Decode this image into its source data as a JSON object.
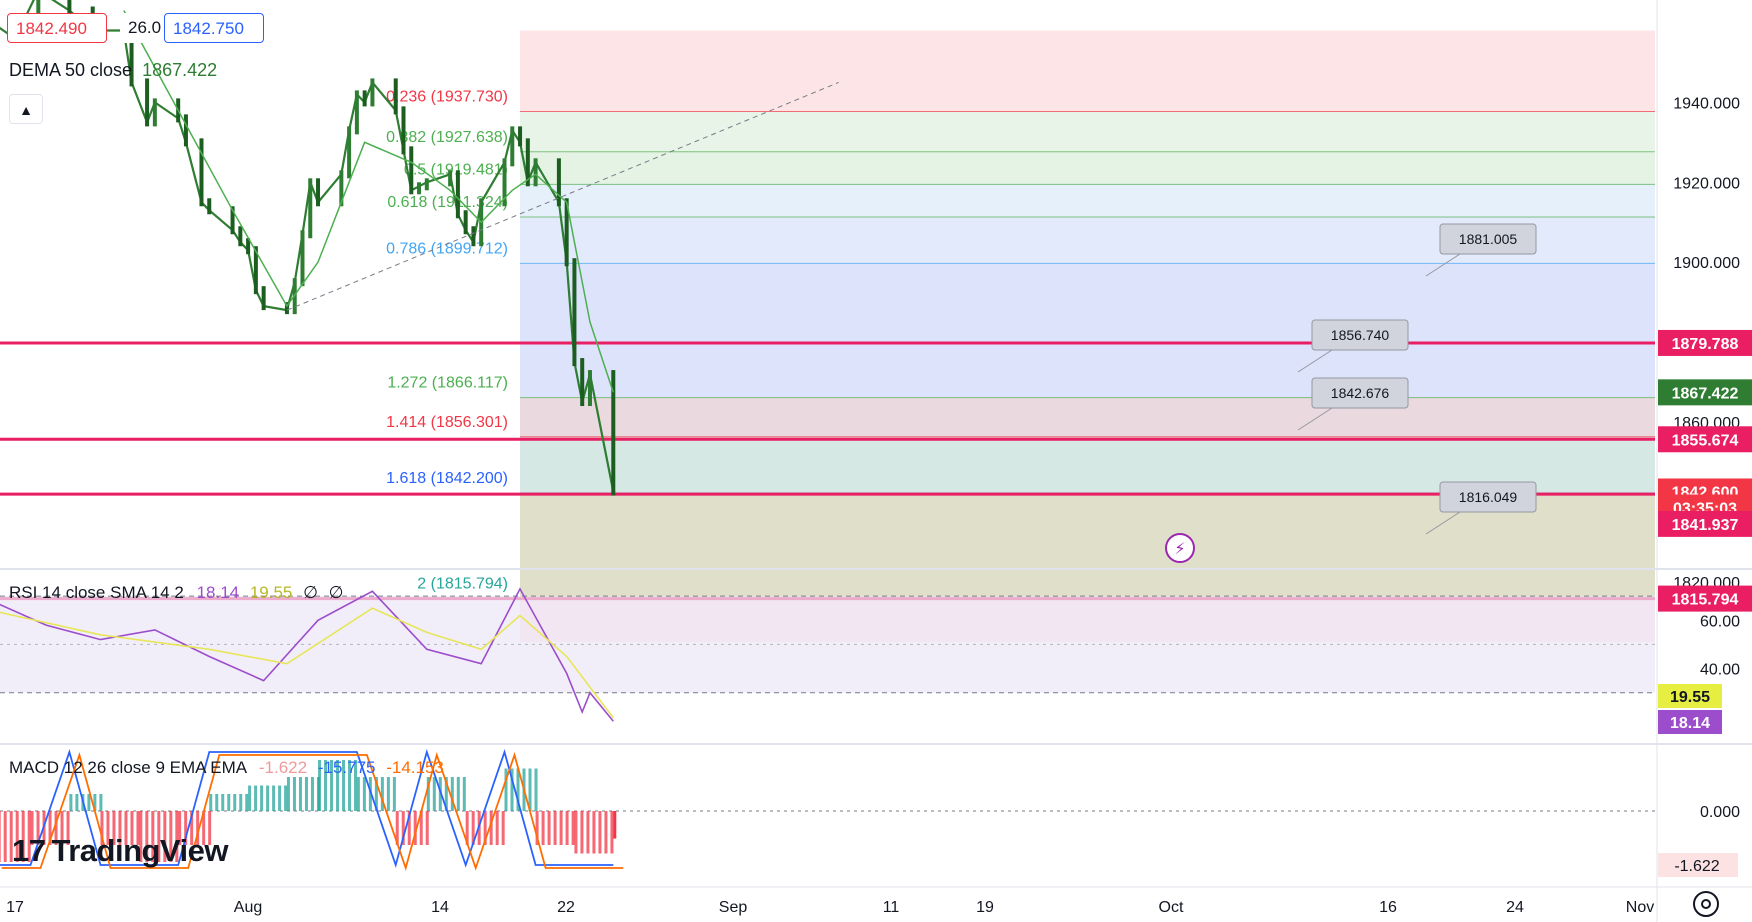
{
  "header": {
    "bid_price": "1842.490",
    "spread": "26.0",
    "ask_price": "1842.750",
    "dema_label": "DEMA 50 close",
    "dema_value": "1867.422",
    "collapse_icon": "chevron-up-icon"
  },
  "branding": {
    "logo_text": "TradingView",
    "logo_icon": "tradingview-logo-icon"
  },
  "colors": {
    "fib_red": "#f23645",
    "fib_green": "#4caf50",
    "fib_blue": "#2962ff",
    "horizontal_lines": "#e91e63",
    "candles": "#2e7d32",
    "dema": "#4caf50",
    "rsi": "#9c4dcc",
    "rsi_sma": "#e6e65a",
    "macd": "#2962ff",
    "signal": "#ff6d00"
  },
  "chart_data": [
    {
      "type": "line",
      "name": "price",
      "y_axis_ticks": [
        "1940.000",
        "1920.000",
        "1900.000",
        "1860.000",
        "1820.000"
      ],
      "x_axis_labels": [
        "17",
        "Aug",
        "14",
        "22",
        "Sep",
        "11",
        "19",
        "Oct",
        "16",
        "24",
        "Nov"
      ],
      "fib_levels": [
        {
          "ratio": "0.236",
          "price": 1937.73,
          "label": "0.236 (1937.730)"
        },
        {
          "ratio": "0.382",
          "price": 1927.638,
          "label": "0.382 (1927.638)"
        },
        {
          "ratio": "0.5",
          "price": 1919.481,
          "label": "0.5 (1919.481)"
        },
        {
          "ratio": "0.618",
          "price": 1911.324,
          "label": "0.618 (1911.324)"
        },
        {
          "ratio": "0.786",
          "price": 1899.712,
          "label": "0.786 (1899.712)"
        },
        {
          "ratio": "1.272",
          "price": 1866.117,
          "label": "1.272 (1866.117)"
        },
        {
          "ratio": "1.414",
          "price": 1856.301,
          "label": "1.414 (1856.301)"
        },
        {
          "ratio": "1.618",
          "price": 1842.2,
          "label": "1.618 (1842.200)"
        },
        {
          "ratio": "2",
          "price": 1815.794,
          "label": "2 (1815.794)"
        }
      ],
      "horizontal_lines": [
        1879.788,
        1855.674,
        1841.937,
        1815.794
      ],
      "axis_badges": [
        {
          "text": "1879.788",
          "price": 1879.788,
          "color": "#e91e63"
        },
        {
          "text": "1867.422",
          "price": 1867.422,
          "color": "#2e7d32"
        },
        {
          "text": "1855.674",
          "price": 1855.674,
          "color": "#e91e63"
        },
        {
          "text": "1842.600",
          "price": 1842.6,
          "color": "#f23645"
        },
        {
          "text": "03:35:03",
          "price": 1838.6,
          "color": "#f23645"
        },
        {
          "text": "1841.937",
          "price": 1834.5,
          "color": "#e91e63"
        },
        {
          "text": "1815.794",
          "price": 1815.794,
          "color": "#e91e63"
        }
      ],
      "callouts": [
        "1881.005",
        "1856.740",
        "1842.676",
        "1816.049"
      ],
      "close_path": [
        [
          "2023-07-14",
          1960
        ],
        [
          "2023-07-17",
          1956
        ],
        [
          "2023-07-20",
          1968
        ],
        [
          "2023-07-24",
          1963
        ],
        [
          "2023-07-27",
          1958
        ],
        [
          "2023-07-31",
          1958
        ],
        [
          "2023-08-01",
          1945
        ],
        [
          "2023-08-03",
          1935
        ],
        [
          "2023-08-04",
          1940
        ],
        [
          "2023-08-07",
          1936
        ],
        [
          "2023-08-08",
          1930
        ],
        [
          "2023-08-10",
          1915
        ],
        [
          "2023-08-11",
          1913
        ],
        [
          "2023-08-14",
          1908
        ],
        [
          "2023-08-15",
          1905
        ],
        [
          "2023-08-16",
          1903
        ],
        [
          "2023-08-17",
          1893
        ],
        [
          "2023-08-18",
          1889
        ],
        [
          "2023-08-21",
          1888
        ],
        [
          "2023-08-22",
          1895
        ],
        [
          "2023-08-23",
          1907
        ],
        [
          "2023-08-24",
          1920
        ],
        [
          "2023-08-25",
          1915
        ],
        [
          "2023-08-28",
          1922
        ],
        [
          "2023-08-29",
          1933
        ],
        [
          "2023-08-30",
          1942
        ],
        [
          "2023-08-31",
          1940
        ],
        [
          "2023-09-01",
          1945
        ],
        [
          "2023-09-04",
          1938
        ],
        [
          "2023-09-05",
          1928
        ],
        [
          "2023-09-06",
          1918
        ],
        [
          "2023-09-07",
          1919
        ],
        [
          "2023-09-08",
          1920
        ],
        [
          "2023-09-11",
          1922
        ],
        [
          "2023-09-12",
          1912
        ],
        [
          "2023-09-13",
          1908
        ],
        [
          "2023-09-14",
          1905
        ],
        [
          "2023-09-15",
          1915
        ],
        [
          "2023-09-18",
          1925
        ],
        [
          "2023-09-19",
          1933
        ],
        [
          "2023-09-20",
          1930
        ],
        [
          "2023-09-21",
          1920
        ],
        [
          "2023-09-22",
          1925
        ],
        [
          "2023-09-25",
          1915
        ],
        [
          "2023-09-26",
          1900
        ],
        [
          "2023-09-27",
          1875
        ],
        [
          "2023-09-28",
          1865
        ],
        [
          "2023-09-29",
          1872
        ],
        [
          "2023-10-02",
          1842.6
        ]
      ],
      "dema_path": [
        [
          "2023-07-31",
          1963
        ],
        [
          "2023-08-07",
          1938
        ],
        [
          "2023-08-14",
          1913
        ],
        [
          "2023-08-21",
          1889
        ],
        [
          "2023-08-25",
          1900
        ],
        [
          "2023-08-31",
          1930
        ],
        [
          "2023-09-06",
          1925
        ],
        [
          "2023-09-11",
          1918
        ],
        [
          "2023-09-15",
          1910
        ],
        [
          "2023-09-19",
          1918
        ],
        [
          "2023-09-22",
          1922
        ],
        [
          "2023-09-26",
          1915
        ],
        [
          "2023-09-29",
          1885
        ],
        [
          "2023-10-02",
          1867.422
        ]
      ],
      "trendline": [
        [
          "2023-08-21",
          1888
        ],
        [
          "2023-10-31",
          1945
        ]
      ]
    },
    {
      "type": "line",
      "name": "rsi",
      "label": "RSI 14 close SMA 14 2",
      "value": "18.14",
      "sma_value": "19.55",
      "extra": [
        "∅",
        "∅"
      ],
      "y_axis_ticks": [
        "60.00",
        "40.00"
      ],
      "ylim": [
        10,
        80
      ],
      "bands": [
        30,
        70
      ],
      "rsi_path": [
        [
          "2023-07-14",
          68
        ],
        [
          "2023-07-21",
          58
        ],
        [
          "2023-07-28",
          52
        ],
        [
          "2023-08-04",
          56
        ],
        [
          "2023-08-11",
          45
        ],
        [
          "2023-08-18",
          35
        ],
        [
          "2023-08-25",
          60
        ],
        [
          "2023-09-01",
          72
        ],
        [
          "2023-09-08",
          48
        ],
        [
          "2023-09-15",
          42
        ],
        [
          "2023-09-20",
          73
        ],
        [
          "2023-09-26",
          38
        ],
        [
          "2023-09-28",
          22
        ],
        [
          "2023-09-29",
          30
        ],
        [
          "2023-10-02",
          18.14
        ]
      ],
      "sma_path": [
        [
          "2023-07-14",
          64
        ],
        [
          "2023-07-28",
          54
        ],
        [
          "2023-08-11",
          48
        ],
        [
          "2023-08-21",
          42
        ],
        [
          "2023-09-01",
          65
        ],
        [
          "2023-09-08",
          55
        ],
        [
          "2023-09-15",
          48
        ],
        [
          "2023-09-20",
          62
        ],
        [
          "2023-09-26",
          45
        ],
        [
          "2023-10-02",
          19.55
        ]
      ]
    },
    {
      "type": "bar",
      "name": "macd",
      "label": "MACD 12 26 close 9 EMA EMA",
      "histogram_value": "-1.622",
      "macd_value": "-15.775",
      "signal_value": "-14.153",
      "y_axis_ticks": [
        "0.000"
      ],
      "axis_badges": [
        "-1.622"
      ],
      "histogram": [
        [
          "2023-07-14",
          -3
        ],
        [
          "2023-07-19",
          -2
        ],
        [
          "2023-07-24",
          1
        ],
        [
          "2023-07-28",
          -2
        ],
        [
          "2023-08-02",
          -3
        ],
        [
          "2023-08-07",
          -2
        ],
        [
          "2023-08-11",
          1
        ],
        [
          "2023-08-16",
          1.5
        ],
        [
          "2023-08-21",
          2
        ],
        [
          "2023-08-25",
          3
        ],
        [
          "2023-08-30",
          2
        ],
        [
          "2023-09-04",
          -2
        ],
        [
          "2023-09-08",
          2
        ],
        [
          "2023-09-13",
          -2
        ],
        [
          "2023-09-18",
          2.5
        ],
        [
          "2023-09-22",
          -2
        ],
        [
          "2023-09-27",
          -2.5
        ],
        [
          "2023-10-02",
          -1.622
        ]
      ]
    }
  ]
}
